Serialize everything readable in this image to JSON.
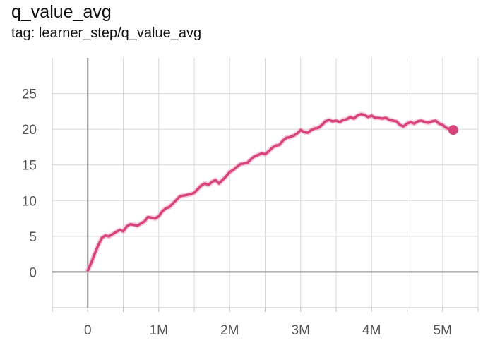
{
  "header": {
    "title": "q_value_avg",
    "subtitle": "tag: learner_step/q_value_avg"
  },
  "chart_data": {
    "type": "line",
    "title": "q_value_avg",
    "subtitle": "tag: learner_step/q_value_avg",
    "xlabel": "",
    "ylabel": "",
    "xlim": [
      -500000,
      5500000
    ],
    "ylim": [
      -5,
      30
    ],
    "x_ticks": [
      0,
      1000000,
      2000000,
      3000000,
      4000000,
      5000000
    ],
    "x_tick_labels": [
      "0",
      "1M",
      "2M",
      "3M",
      "4M",
      "5M"
    ],
    "y_ticks": [
      0,
      5,
      10,
      15,
      20,
      25
    ],
    "y_tick_labels": [
      "0",
      "5",
      "10",
      "15",
      "20",
      "25"
    ],
    "grid": true,
    "legend": "none",
    "colors": {
      "series": "#d8437b",
      "raw": "#f0b7cd",
      "axis": "#888888",
      "grid": "#d9d9d9"
    },
    "series": [
      {
        "x": [
          0,
          50000,
          100000,
          150000,
          200000,
          250000,
          300000,
          350000,
          400000,
          450000,
          500000,
          550000,
          600000,
          650000,
          700000,
          750000,
          800000,
          850000,
          900000,
          950000,
          1000000,
          1050000,
          1100000,
          1150000,
          1200000,
          1250000,
          1300000,
          1350000,
          1400000,
          1450000,
          1500000,
          1550000,
          1600000,
          1650000,
          1700000,
          1750000,
          1800000,
          1850000,
          1900000,
          1950000,
          2000000,
          2050000,
          2100000,
          2150000,
          2200000,
          2250000,
          2300000,
          2350000,
          2400000,
          2450000,
          2500000,
          2550000,
          2600000,
          2650000,
          2700000,
          2750000,
          2800000,
          2850000,
          2900000,
          2950000,
          3000000,
          3050000,
          3100000,
          3150000,
          3200000,
          3250000,
          3300000,
          3350000,
          3400000,
          3450000,
          3500000,
          3550000,
          3600000,
          3650000,
          3700000,
          3750000,
          3800000,
          3850000,
          3900000,
          3950000,
          4000000,
          4050000,
          4100000,
          4150000,
          4200000,
          4250000,
          4300000,
          4350000,
          4400000,
          4450000,
          4500000,
          4550000,
          4600000,
          4650000,
          4700000,
          4750000,
          4800000,
          4850000,
          4900000,
          4950000,
          5000000,
          5050000,
          5100000,
          5150000
        ],
        "values": [
          0.2,
          1.3,
          2.6,
          3.8,
          4.8,
          5.1,
          5.0,
          5.3,
          5.6,
          5.9,
          5.7,
          6.4,
          6.7,
          6.6,
          6.5,
          6.8,
          7.1,
          7.7,
          7.6,
          7.5,
          7.8,
          8.5,
          8.9,
          9.1,
          9.6,
          10.1,
          10.6,
          10.7,
          10.8,
          10.9,
          11.1,
          11.6,
          12.1,
          12.4,
          12.2,
          12.6,
          12.9,
          12.4,
          12.9,
          13.4,
          14.0,
          14.3,
          14.7,
          15.1,
          15.2,
          15.3,
          15.8,
          16.2,
          16.4,
          16.6,
          16.5,
          16.9,
          17.4,
          17.7,
          17.8,
          18.4,
          18.8,
          18.9,
          19.1,
          19.4,
          19.9,
          19.6,
          19.5,
          19.9,
          20.1,
          20.2,
          20.6,
          21.1,
          21.3,
          21.1,
          21.2,
          21.0,
          21.3,
          21.4,
          21.7,
          21.5,
          21.9,
          22.1,
          22.0,
          21.7,
          21.9,
          21.6,
          21.6,
          21.5,
          21.6,
          21.3,
          21.2,
          21.1,
          20.6,
          20.4,
          20.8,
          21.0,
          20.8,
          21.1,
          21.2,
          21.0,
          20.9,
          21.1,
          21.2,
          20.8,
          20.6,
          20.2,
          20.0,
          19.9
        ]
      }
    ]
  }
}
